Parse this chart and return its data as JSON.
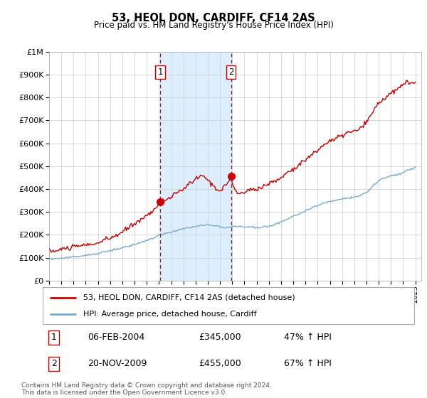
{
  "title": "53, HEOL DON, CARDIFF, CF14 2AS",
  "subtitle": "Price paid vs. HM Land Registry's House Price Index (HPI)",
  "ylim": [
    0,
    1000000
  ],
  "yticks": [
    0,
    100000,
    200000,
    300000,
    400000,
    500000,
    600000,
    700000,
    800000,
    900000,
    1000000
  ],
  "ytick_labels": [
    "£0",
    "£100K",
    "£200K",
    "£300K",
    "£400K",
    "£500K",
    "£600K",
    "£700K",
    "£800K",
    "£900K",
    "£1M"
  ],
  "xlim_start": 1995.0,
  "xlim_end": 2025.5,
  "xtick_years": [
    1995,
    1996,
    1997,
    1998,
    1999,
    2000,
    2001,
    2002,
    2003,
    2004,
    2005,
    2006,
    2007,
    2008,
    2009,
    2010,
    2011,
    2012,
    2013,
    2014,
    2015,
    2016,
    2017,
    2018,
    2019,
    2020,
    2021,
    2022,
    2023,
    2024,
    2025
  ],
  "sale1_x": 2004.09,
  "sale1_y": 345000,
  "sale1_label": "1",
  "sale1_date": "06-FEB-2004",
  "sale1_price": "£345,000",
  "sale1_hpi": "47% ↑ HPI",
  "sale2_x": 2009.9,
  "sale2_y": 455000,
  "sale2_label": "2",
  "sale2_date": "20-NOV-2009",
  "sale2_price": "£455,000",
  "sale2_hpi": "67% ↑ HPI",
  "red_line_color": "#cc0000",
  "blue_line_color": "#7aabcf",
  "shade_color": "#ddeeff",
  "grid_color": "#cccccc",
  "background_color": "#ffffff",
  "legend_line1": "53, HEOL DON, CARDIFF, CF14 2AS (detached house)",
  "legend_line2": "HPI: Average price, detached house, Cardiff",
  "footnote": "Contains HM Land Registry data © Crown copyright and database right 2024.\nThis data is licensed under the Open Government Licence v3.0."
}
